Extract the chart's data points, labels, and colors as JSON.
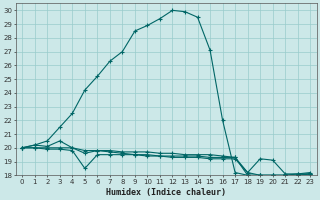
{
  "xlabel": "Humidex (Indice chaleur)",
  "background_color": "#cce8e8",
  "line_color": "#006666",
  "grid_color": "#99cccc",
  "xlim": [
    -0.5,
    23.5
  ],
  "ylim": [
    18,
    30.5
  ],
  "xticks": [
    0,
    1,
    2,
    3,
    4,
    5,
    6,
    7,
    8,
    9,
    10,
    11,
    12,
    13,
    14,
    15,
    16,
    17,
    18,
    19,
    20,
    21,
    22,
    23
  ],
  "yticks": [
    18,
    19,
    20,
    21,
    22,
    23,
    24,
    25,
    26,
    27,
    28,
    29,
    30
  ],
  "curve_main_x": [
    0,
    1,
    2,
    3,
    4,
    5,
    6,
    7,
    8,
    9,
    10,
    11,
    12,
    13,
    14,
    15,
    16,
    17,
    18,
    19,
    20,
    21,
    22,
    23
  ],
  "curve_main_y": [
    20.0,
    20.2,
    20.5,
    21.5,
    22.5,
    24.2,
    25.2,
    26.3,
    27.0,
    28.5,
    28.9,
    29.4,
    30.0,
    29.9,
    29.5,
    27.1,
    22.0,
    18.2,
    18.0,
    18.0,
    18.0,
    18.0,
    18.1,
    18.1
  ],
  "curve_flat1_x": [
    0,
    1,
    2,
    3,
    4,
    5,
    6,
    7,
    8,
    9,
    10,
    11,
    12,
    13,
    14,
    15,
    16,
    17,
    18,
    19,
    20,
    21,
    22,
    23
  ],
  "curve_flat1_y": [
    20.0,
    20.2,
    20.1,
    20.5,
    20.0,
    19.8,
    19.8,
    19.7,
    19.6,
    19.5,
    19.5,
    19.4,
    19.4,
    19.4,
    19.4,
    19.3,
    19.3,
    19.3,
    18.2,
    19.2,
    19.1,
    18.1,
    18.1,
    18.2
  ],
  "curve_flat2_x": [
    0,
    1,
    2,
    3,
    4,
    5,
    6,
    7,
    8,
    9,
    10,
    11,
    12,
    13,
    14,
    15,
    16,
    17,
    18,
    19,
    20,
    21,
    22,
    23
  ],
  "curve_flat2_y": [
    20.0,
    20.0,
    19.9,
    19.9,
    19.8,
    18.5,
    19.5,
    19.5,
    19.5,
    19.5,
    19.4,
    19.4,
    19.3,
    19.3,
    19.3,
    19.2,
    19.2,
    19.2,
    18.2,
    18.0,
    18.0,
    18.0,
    18.0,
    18.1
  ],
  "curve_flat3_x": [
    0,
    1,
    2,
    3,
    4,
    5,
    6,
    7,
    8,
    9,
    10,
    11,
    12,
    13,
    14,
    15,
    16,
    17,
    18,
    19,
    20,
    21,
    22,
    23
  ],
  "curve_flat3_y": [
    20.0,
    20.0,
    20.0,
    20.0,
    20.0,
    19.6,
    19.8,
    19.8,
    19.7,
    19.7,
    19.7,
    19.6,
    19.6,
    19.5,
    19.5,
    19.5,
    19.4,
    19.3,
    18.0,
    18.0,
    18.0,
    18.0,
    18.0,
    18.1
  ]
}
